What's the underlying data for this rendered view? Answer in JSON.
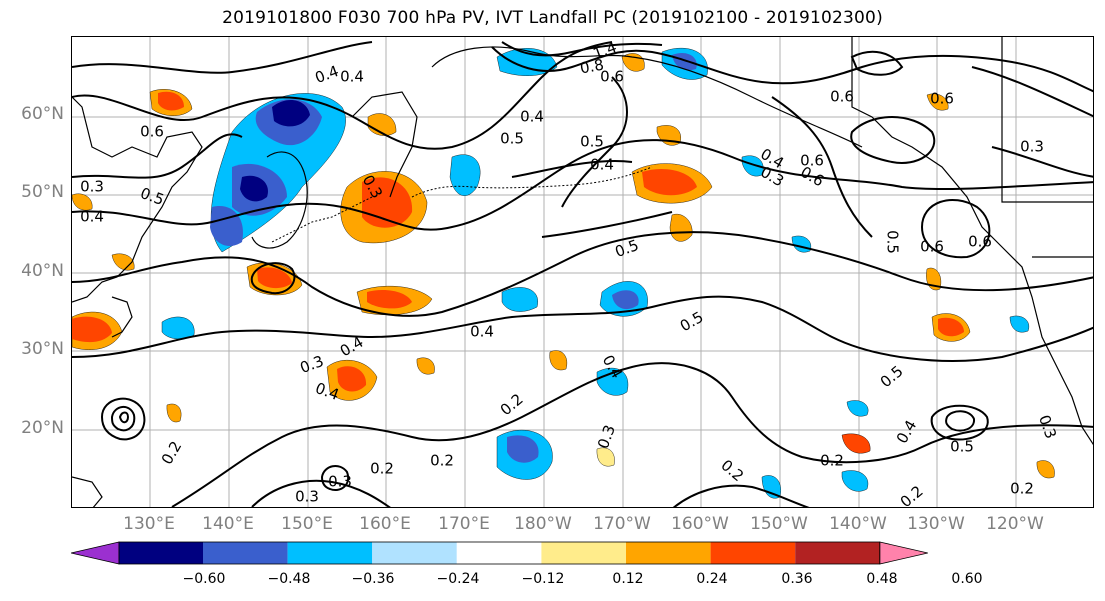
{
  "title": "2019101800 F030 700 hPa PV, IVT Landfall PC (2019102100 - 2019102300)",
  "lat_labels": [
    "60°N",
    "50°N",
    "40°N",
    "30°N",
    "20°N"
  ],
  "lon_labels": [
    "130°E",
    "140°E",
    "150°E",
    "160°E",
    "170°E",
    "180°W",
    "170°W",
    "160°W",
    "150°W",
    "140°W",
    "130°W",
    "120°W"
  ],
  "colorbar": {
    "ticks": [
      "−0.60",
      "−0.48",
      "−0.36",
      "−0.24",
      "−0.12",
      "0.12",
      "0.24",
      "0.36",
      "0.48",
      "0.60"
    ],
    "colors": [
      "#9b30d0",
      "#000080",
      "#3a5fcd",
      "#00bfff",
      "#b0e2ff",
      "#ffffff",
      "#ffec8b",
      "#ffa500",
      "#ff4500",
      "#b22222",
      "#ff82ab"
    ]
  },
  "contour_labels": [
    "1.4",
    "0.8",
    "0.6",
    "0.4",
    "0.6",
    "0.4",
    "0.5",
    "0.6",
    "0.3",
    "0.4",
    "0.4",
    "0.5",
    "0.6",
    "0.3",
    "0.6",
    "0.3",
    "0.5",
    "0.4",
    "0.5",
    "0.6",
    "0.4",
    "0.5",
    "0.4",
    "0.3",
    "0.3",
    "0.4",
    "0.2",
    "0.4",
    "0.3",
    "0.2",
    "0.2",
    "0.3",
    "0.5",
    "0.4",
    "0.5",
    "0.2",
    "0.2",
    "0.2",
    "0.3",
    "0.2",
    "0.5",
    "0.3",
    "0.2",
    "0.6",
    "0.4",
    "0.6"
  ],
  "colors": {
    "land": "#000000",
    "contour": "#000000",
    "grid": "#b0b0b0",
    "label_gray": "#808080"
  }
}
